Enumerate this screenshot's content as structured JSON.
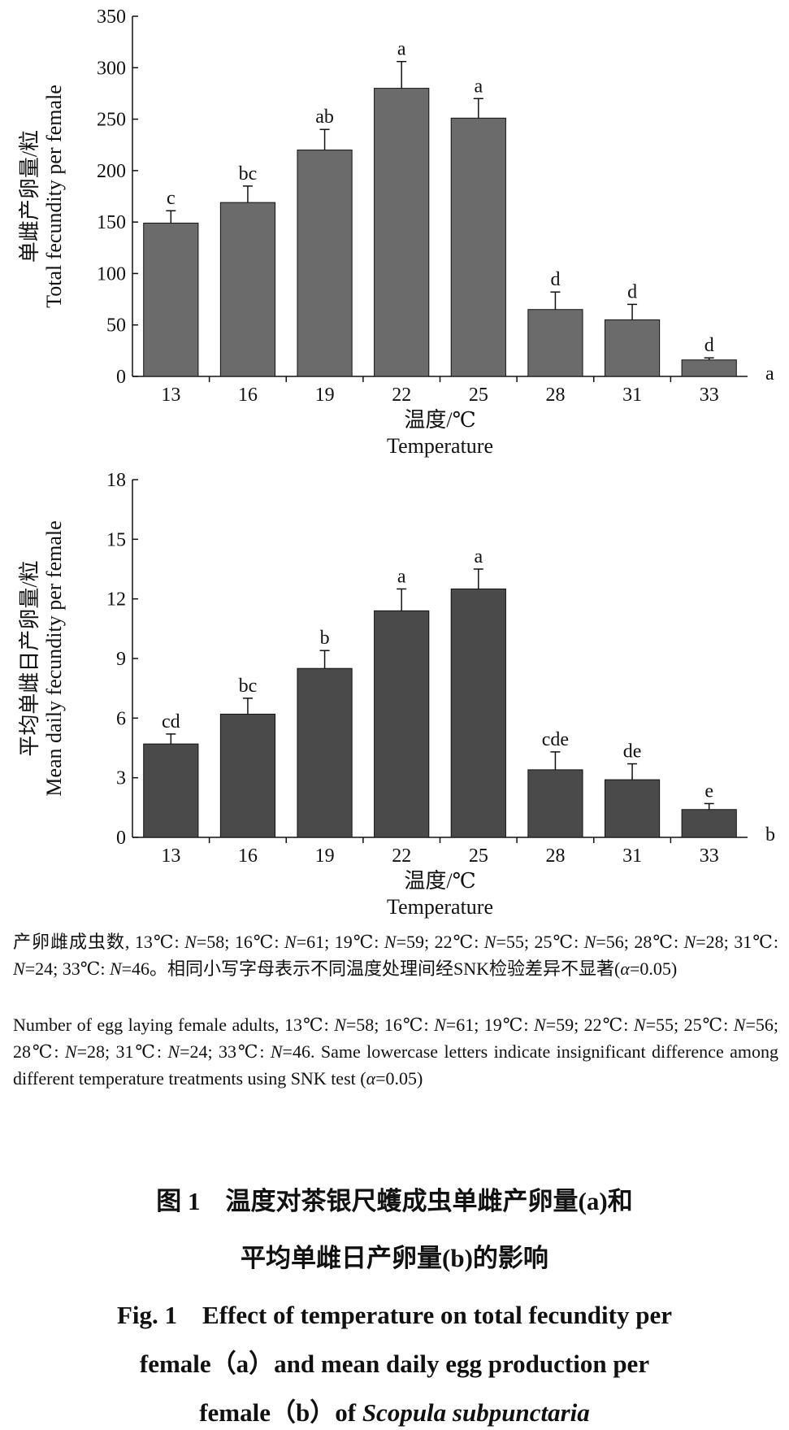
{
  "chart_data": [
    {
      "type": "bar",
      "panel": "a",
      "categories": [
        "13",
        "16",
        "19",
        "22",
        "25",
        "28",
        "31",
        "33"
      ],
      "values": [
        149,
        169,
        220,
        280,
        251,
        65,
        55,
        16
      ],
      "errors": [
        12,
        16,
        20,
        26,
        19,
        17,
        15,
        2
      ],
      "significance": [
        "c",
        "bc",
        "ab",
        "a",
        "a",
        "d",
        "d",
        "d"
      ],
      "ylabel_zh": "单雌产卵量/粒",
      "ylabel_en": "Total fecundity per female",
      "xlabel_zh": "温度/℃",
      "xlabel_en": "Temperature",
      "ylim": [
        0,
        350
      ],
      "yticks": [
        0,
        50,
        100,
        150,
        200,
        250,
        300,
        350
      ],
      "bar_color": "#6b6b6b"
    },
    {
      "type": "bar",
      "panel": "b",
      "categories": [
        "13",
        "16",
        "19",
        "22",
        "25",
        "28",
        "31",
        "33"
      ],
      "values": [
        4.7,
        6.2,
        8.5,
        11.4,
        12.5,
        3.4,
        2.9,
        1.4
      ],
      "errors": [
        0.5,
        0.8,
        0.9,
        1.1,
        1.0,
        0.9,
        0.8,
        0.3
      ],
      "significance": [
        "cd",
        "bc",
        "b",
        "a",
        "a",
        "cde",
        "de",
        "e"
      ],
      "ylabel_zh": "平均单雌日产卵量/粒",
      "ylabel_en": "Mean daily fecundity per female",
      "xlabel_zh": "温度/℃",
      "xlabel_en": "Temperature",
      "ylim": [
        0,
        18
      ],
      "yticks": [
        0,
        3,
        6,
        9,
        12,
        15,
        18
      ],
      "bar_color": "#4a4a4a"
    }
  ],
  "notes": {
    "zh_html": "产卵雌成虫数, 13℃: <i>N</i>=58; 16℃: <i>N</i>=61; 19℃: <i>N</i>=59; 22℃: <i>N</i>=55; 25℃: <i>N</i>=56; 28℃: <i>N</i>=28; 31℃: <i>N</i>=24; 33℃: <i>N</i>=46。相同小写字母表示不同温度处理间经SNK检验差异不显著(<i>α</i>=0.05)",
    "en_html": "Number of egg laying female adults, 13℃: <i>N</i>=58; 16℃: <i>N</i>=61; 19℃: <i>N</i>=59; 22℃: <i>N</i>=55; 25℃: <i>N</i>=56; 28℃: <i>N</i>=28; 31℃: <i>N</i>=24; 33℃: <i>N</i>=46. Same lowercase letters indicate insignificant difference among different temperature treatments using SNK test (<i>α</i>=0.05)"
  },
  "caption": {
    "zh_line1": "图 1　温度对茶银尺蠖成虫单雌产卵量(a)和",
    "zh_line2": "平均单雌日产卵量(b)的影响",
    "en_line1": "Fig. 1　Effect of temperature on total fecundity per",
    "en_line2": "female（a）and mean daily egg production per",
    "en_line3_prefix": "female（b）of ",
    "species": "Scopula subpunctaria"
  }
}
